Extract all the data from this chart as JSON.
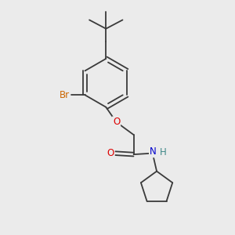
{
  "bg_color": "#ebebeb",
  "bond_color": "#3a3a3a",
  "bond_width": 1.3,
  "atom_colors": {
    "Br": "#cc6600",
    "O": "#dd0000",
    "N": "#0000cc",
    "H": "#408888",
    "C": "#3a3a3a"
  },
  "font_size": 8.5
}
